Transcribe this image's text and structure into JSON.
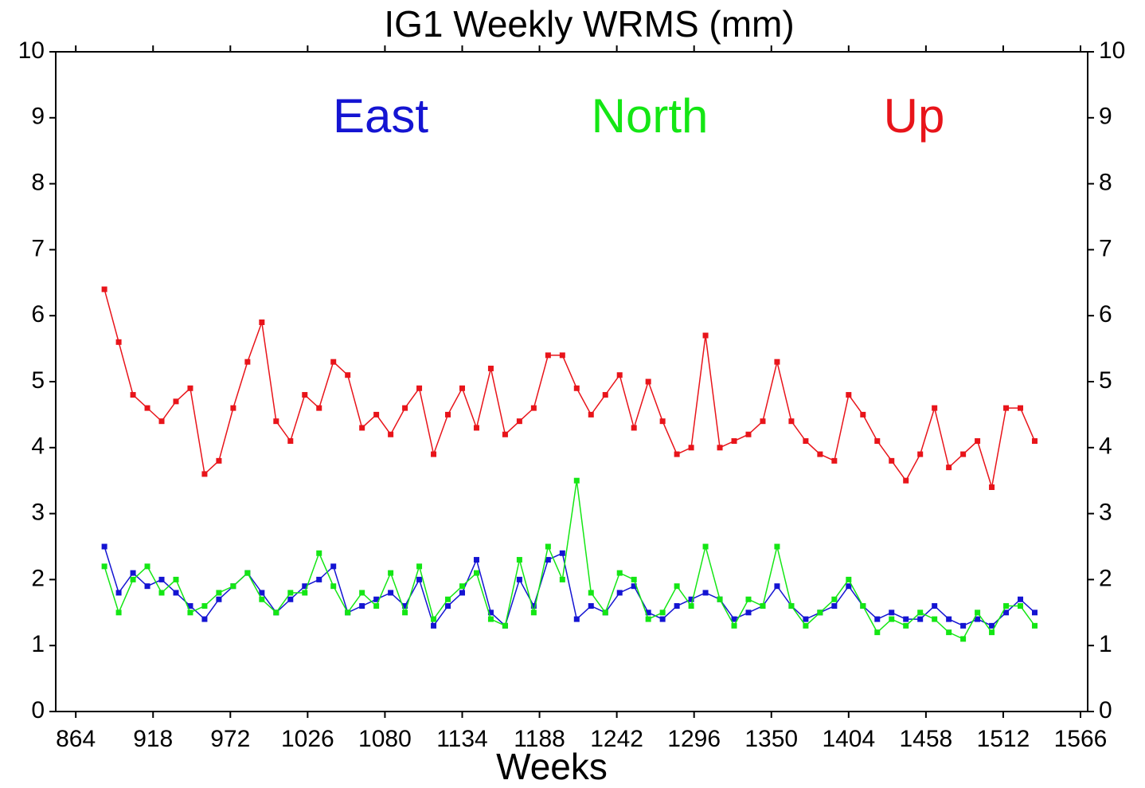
{
  "chart_data": {
    "type": "line",
    "title": "IG1 Weekly WRMS (mm)",
    "x_label": "Weeks",
    "x": [
      884,
      894,
      904,
      914,
      924,
      934,
      944,
      954,
      964,
      974,
      984,
      994,
      1004,
      1014,
      1024,
      1034,
      1044,
      1054,
      1064,
      1074,
      1084,
      1094,
      1104,
      1114,
      1124,
      1134,
      1144,
      1154,
      1164,
      1174,
      1184,
      1194,
      1204,
      1214,
      1224,
      1234,
      1244,
      1254,
      1264,
      1274,
      1284,
      1294,
      1304,
      1314,
      1324,
      1334,
      1344,
      1354,
      1364,
      1374,
      1384,
      1394,
      1404,
      1414,
      1424,
      1434,
      1444,
      1454,
      1464,
      1474,
      1484,
      1494,
      1504,
      1514,
      1524,
      1534
    ],
    "series": [
      {
        "name": "Up",
        "color": "#e8141a",
        "values": [
          6.4,
          5.6,
          4.8,
          4.6,
          4.4,
          4.7,
          4.9,
          3.6,
          3.8,
          4.6,
          5.3,
          5.9,
          4.4,
          4.1,
          4.8,
          4.6,
          5.3,
          5.1,
          4.3,
          4.5,
          4.2,
          4.6,
          4.9,
          3.9,
          4.5,
          4.9,
          4.3,
          5.2,
          4.2,
          4.4,
          4.6,
          5.4,
          5.4,
          4.9,
          4.5,
          4.8,
          5.1,
          4.3,
          5.0,
          4.4,
          3.9,
          4.0,
          5.7,
          4.0,
          4.1,
          4.2,
          4.4,
          5.3,
          4.4,
          4.1,
          3.9,
          3.8,
          4.8,
          4.5,
          4.1,
          3.8,
          3.5,
          3.9,
          4.6,
          3.7,
          3.9,
          4.1,
          3.4,
          4.6,
          4.6,
          4.1
        ]
      },
      {
        "name": "East",
        "color": "#1414d2",
        "values": [
          2.5,
          1.8,
          2.1,
          1.9,
          2.0,
          1.8,
          1.6,
          1.4,
          1.7,
          1.9,
          2.1,
          1.8,
          1.5,
          1.7,
          1.9,
          2.0,
          2.2,
          1.5,
          1.6,
          1.7,
          1.8,
          1.6,
          2.0,
          1.3,
          1.6,
          1.8,
          2.3,
          1.5,
          1.3,
          2.0,
          1.6,
          2.3,
          2.4,
          1.4,
          1.6,
          1.5,
          1.8,
          1.9,
          1.5,
          1.4,
          1.6,
          1.7,
          1.8,
          1.7,
          1.4,
          1.5,
          1.6,
          1.9,
          1.6,
          1.4,
          1.5,
          1.6,
          1.9,
          1.6,
          1.4,
          1.5,
          1.4,
          1.4,
          1.6,
          1.4,
          1.3,
          1.4,
          1.3,
          1.5,
          1.7,
          1.5
        ]
      },
      {
        "name": "North",
        "color": "#14e614",
        "values": [
          2.2,
          1.5,
          2.0,
          2.2,
          1.8,
          2.0,
          1.5,
          1.6,
          1.8,
          1.9,
          2.1,
          1.7,
          1.5,
          1.8,
          1.8,
          2.4,
          1.9,
          1.5,
          1.8,
          1.6,
          2.1,
          1.5,
          2.2,
          1.4,
          1.7,
          1.9,
          2.1,
          1.4,
          1.3,
          2.3,
          1.5,
          2.5,
          2.0,
          3.5,
          1.8,
          1.5,
          2.1,
          2.0,
          1.4,
          1.5,
          1.9,
          1.6,
          2.5,
          1.7,
          1.3,
          1.7,
          1.6,
          2.5,
          1.6,
          1.3,
          1.5,
          1.7,
          2.0,
          1.6,
          1.2,
          1.4,
          1.3,
          1.5,
          1.4,
          1.2,
          1.1,
          1.5,
          1.2,
          1.6,
          1.6,
          1.3
        ]
      }
    ],
    "xlim": [
      850,
      1571
    ],
    "xticks": [
      864,
      918,
      972,
      1026,
      1080,
      1134,
      1188,
      1242,
      1296,
      1350,
      1404,
      1458,
      1512,
      1566
    ],
    "ylim": [
      0,
      10
    ],
    "yticks": [
      0,
      1,
      2,
      3,
      4,
      5,
      6,
      7,
      8,
      9,
      10
    ],
    "right_axis_labels": true
  }
}
